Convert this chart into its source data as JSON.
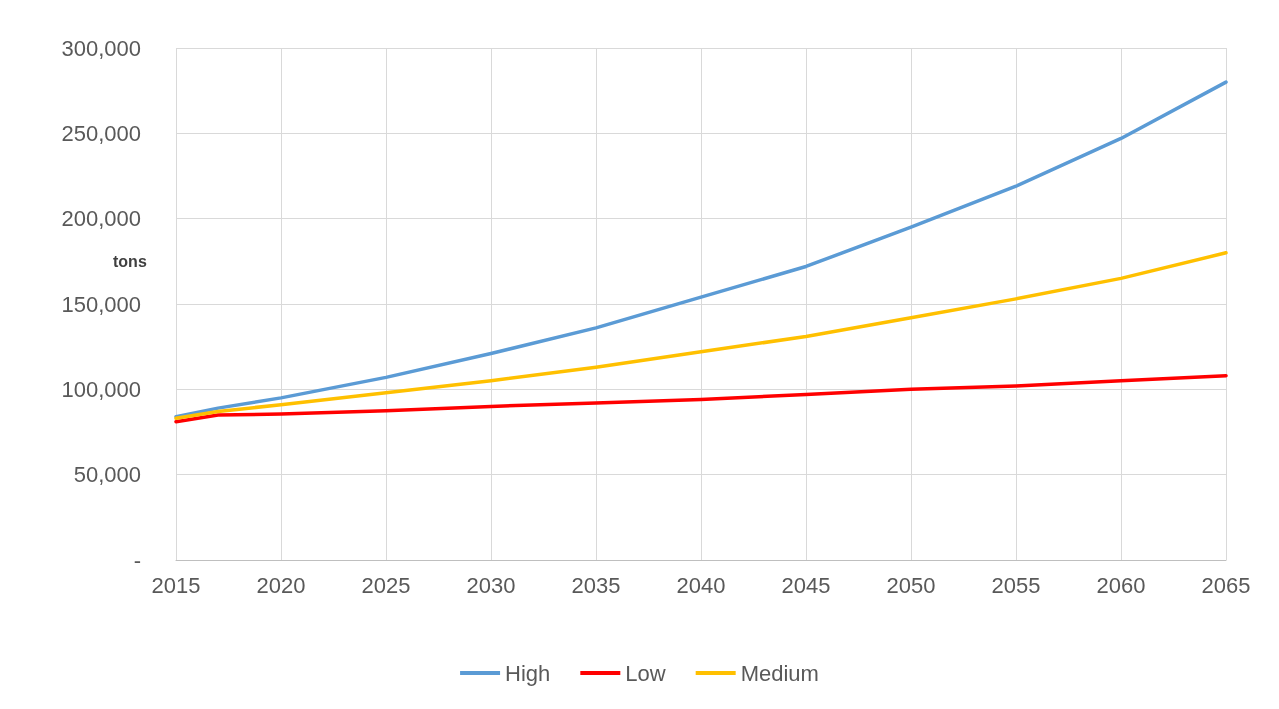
{
  "chart_data": {
    "type": "line",
    "ylabel": "tons",
    "x": [
      2015,
      2017,
      2020,
      2025,
      2030,
      2035,
      2040,
      2045,
      2050,
      2055,
      2060,
      2065
    ],
    "series": [
      {
        "name": "High",
        "color": "#5b9bd5",
        "values": [
          84000,
          89000,
          95000,
          107000,
          121000,
          136000,
          154000,
          172000,
          195000,
          219000,
          247000,
          280000
        ]
      },
      {
        "name": "Low",
        "color": "#ff0000",
        "values": [
          81000,
          85000,
          85500,
          87500,
          90000,
          92000,
          94000,
          97000,
          100000,
          102000,
          105000,
          108000
        ]
      },
      {
        "name": "Medium",
        "color": "#ffc000",
        "values": [
          83000,
          87000,
          91000,
          98000,
          105000,
          113000,
          122000,
          131000,
          142000,
          153000,
          165000,
          180000
        ]
      }
    ],
    "xlim": [
      2015,
      2065
    ],
    "xticks": [
      2015,
      2020,
      2025,
      2030,
      2035,
      2040,
      2045,
      2050,
      2055,
      2060,
      2065
    ],
    "ylim": [
      0,
      300000
    ],
    "yticks": [
      {
        "value": 0,
        "label": "-"
      },
      {
        "value": 50000,
        "label": "50,000"
      },
      {
        "value": 100000,
        "label": "100,000"
      },
      {
        "value": 150000,
        "label": "150,000"
      },
      {
        "value": 200000,
        "label": "200,000"
      },
      {
        "value": 250000,
        "label": "250,000"
      },
      {
        "value": 300000,
        "label": "300,000"
      }
    ],
    "grid": true,
    "legend": "bottom",
    "marker": "none",
    "line_style": "solid"
  }
}
